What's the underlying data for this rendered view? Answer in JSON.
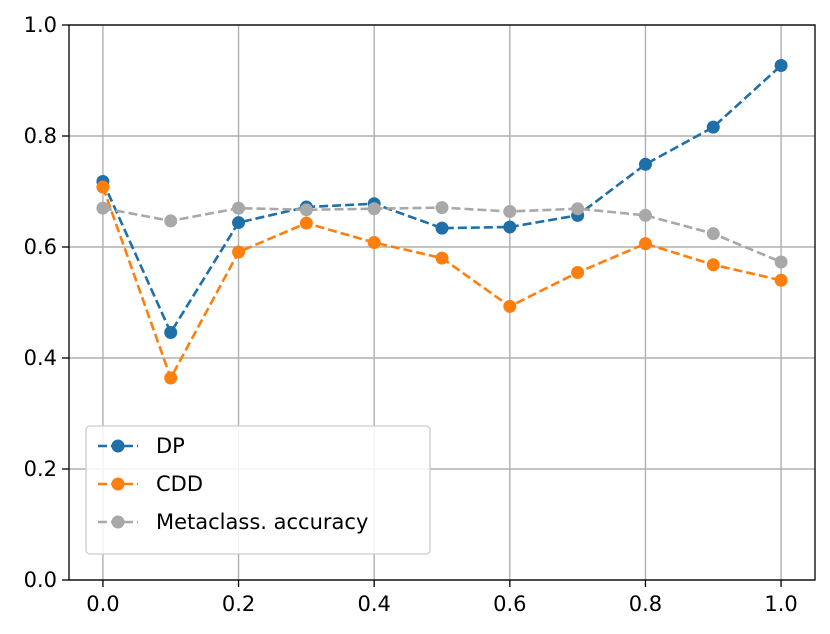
{
  "chart_data": {
    "type": "line",
    "x": [
      0.0,
      0.1,
      0.2,
      0.3,
      0.4,
      0.5,
      0.6,
      0.7,
      0.8,
      0.9,
      1.0
    ],
    "series": [
      {
        "name": "DP",
        "color": "#1f6fa8",
        "values": [
          0.718,
          0.446,
          0.644,
          0.672,
          0.678,
          0.634,
          0.636,
          0.657,
          0.749,
          0.816,
          0.927
        ]
      },
      {
        "name": "CDD",
        "color": "#ff7f0e",
        "values": [
          0.708,
          0.364,
          0.591,
          0.643,
          0.608,
          0.58,
          0.493,
          0.554,
          0.606,
          0.568,
          0.54
        ]
      },
      {
        "name": "Metaclass. accuracy",
        "color": "#a8a8a8",
        "values": [
          0.67,
          0.647,
          0.67,
          0.667,
          0.669,
          0.671,
          0.664,
          0.669,
          0.657,
          0.624,
          0.573
        ]
      }
    ],
    "xlim": [
      -0.05,
      1.05
    ],
    "ylim": [
      0.0,
      1.0
    ],
    "x_ticks": [
      "0.0",
      "0.2",
      "0.4",
      "0.6",
      "0.8",
      "1.0"
    ],
    "y_ticks": [
      "0.0",
      "0.2",
      "0.4",
      "0.6",
      "0.8",
      "1.0"
    ],
    "grid": true,
    "legend_position": "lower-left",
    "line_style": "dashed",
    "marker": "circle"
  }
}
